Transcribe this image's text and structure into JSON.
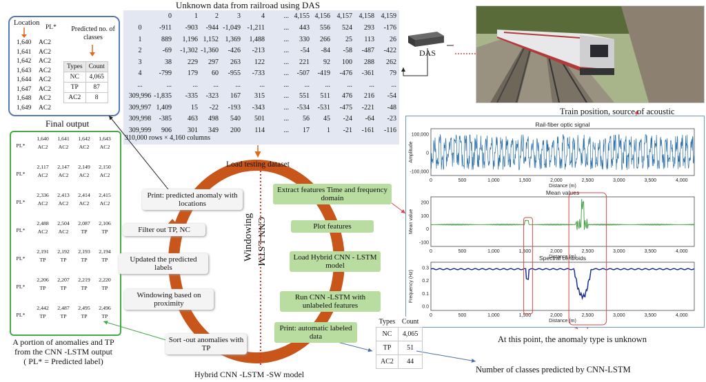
{
  "das_title": "Unknown data from railroad using DAS",
  "das_table": {
    "header": [
      "0",
      "1",
      "2",
      "3",
      "4",
      "...",
      "4,155",
      "4,156",
      "4,157",
      "4,158",
      "4,159"
    ],
    "rows": [
      [
        "0",
        "-911",
        "-903",
        "-944",
        "-1,049",
        "-1,211",
        "...",
        "443",
        "556",
        "524",
        "293",
        "-176"
      ],
      [
        "1",
        "889",
        "1,196",
        "1,152",
        "1,369",
        "1,488",
        "...",
        "330",
        "266",
        "25",
        "113",
        "26"
      ],
      [
        "2",
        "-69",
        "-1,302",
        "-1,360",
        "-426",
        "-213",
        "...",
        "-54",
        "-84",
        "-58",
        "-487",
        "-422"
      ],
      [
        "3",
        "38",
        "229",
        "297",
        "263",
        "122",
        "...",
        "221",
        "92",
        "100",
        "288",
        "262"
      ],
      [
        "4",
        "-799",
        "179",
        "60",
        "-955",
        "-733",
        "...",
        "-507",
        "-419",
        "-476",
        "-361",
        "79"
      ],
      [
        "...",
        "...",
        "...",
        "...",
        "...",
        "...",
        "...",
        "...",
        "...",
        "...",
        "...",
        "..."
      ],
      [
        "309,996",
        "-1,835",
        "-335",
        "-323",
        "167",
        "315",
        "...",
        "551",
        "511",
        "476",
        "216",
        "-54"
      ],
      [
        "309,997",
        "1,409",
        "15",
        "-22",
        "-193",
        "-343",
        "...",
        "-534",
        "-531",
        "-475",
        "-221",
        "-48"
      ],
      [
        "309,998",
        "-385",
        "463",
        "498",
        "540",
        "501",
        "...",
        "56",
        "45",
        "-24",
        "-64",
        "-23"
      ],
      [
        "309,999",
        "906",
        "301",
        "349",
        "200",
        "114",
        "...",
        "17",
        "1",
        "-21",
        "-161",
        "-116"
      ]
    ],
    "footer": "310,000 rows × 4,160 columns"
  },
  "location_panel": {
    "loc_header": "Location",
    "pl_header": "PL*",
    "rows": [
      [
        "1,640",
        "AC2"
      ],
      [
        "1,641",
        "AC2"
      ],
      [
        "1,642",
        "AC2"
      ],
      [
        "1,643",
        "AC2"
      ],
      [
        "1,644",
        "AC2"
      ],
      [
        "1,647",
        "AC2"
      ],
      [
        "1,648",
        "AC2"
      ],
      [
        "1,649",
        "AC2"
      ]
    ],
    "predicted_label": "Predicted no. of classes",
    "count_table": {
      "headers": [
        "Types",
        "Count"
      ],
      "rows": [
        [
          "NC",
          "4,065"
        ],
        [
          "TP",
          "87"
        ],
        [
          "AC2",
          "8"
        ]
      ]
    }
  },
  "final_output": {
    "title": "Final output",
    "pl_label": "PL*",
    "groups": [
      {
        "locs": [
          "1,640",
          "1,641",
          "1,642",
          "1,643"
        ],
        "labels": [
          "AC2",
          "AC2",
          "AC2",
          "AC2"
        ]
      },
      {
        "locs": [
          "2,117",
          "2,147",
          "2,149",
          "2,150"
        ],
        "labels": [
          "AC2",
          "AC2",
          "AC2",
          "AC2"
        ]
      },
      {
        "locs": [
          "2,336",
          "2,413",
          "2,414",
          "2,415"
        ],
        "labels": [
          "AC2",
          "AC2",
          "AC2",
          "AC2"
        ]
      },
      {
        "locs": [
          "2,488",
          "2,504",
          "2,087",
          "2,106"
        ],
        "labels": [
          "AC2",
          "AC2",
          "TP",
          "TP"
        ]
      },
      {
        "locs": [
          "2,191",
          "2,192",
          "2,193",
          "2,194"
        ],
        "labels": [
          "TP",
          "TP",
          "TP",
          "TP"
        ]
      },
      {
        "locs": [
          "2,206",
          "2,207",
          "2,219",
          "2,220"
        ],
        "labels": [
          "TP",
          "TP",
          "TP",
          "TP"
        ]
      },
      {
        "locs": [
          "2,442",
          "2,487",
          "2,495",
          "2,496"
        ],
        "labels": [
          "TP",
          "TP",
          "TP",
          "TP"
        ]
      }
    ],
    "caption_line1": "A portion of anomalies and TP",
    "caption_line2": "from the CNN -LSTM output",
    "caption_line3": "( PL* = Predicted label)"
  },
  "flow": {
    "load": "Load testing dataset",
    "left_steps": [
      "Print: predicted anomaly with locations",
      "Filter out TP, NC",
      "Updated the predicted labels",
      "Windowing based on proximity",
      "Sort -out anomalies with TP"
    ],
    "right_steps": [
      "Extract features Time and frequency domain",
      "Plot features",
      "Load Hybrid CNN - LSTM model",
      "Run CNN -LSTM with unlabeled features",
      "Print: automatic labeled data"
    ],
    "windowing_label": "Windowing",
    "cnn_label": "CNN-LSTM",
    "model_caption": "Hybrid CNN -LSTM -SW model"
  },
  "das_device_label": "DAS",
  "signal_panel": {
    "train_caption": "Train position, source of acoustic",
    "plot1_title": "Rail-fiber optic signal",
    "plot1_ylabel": "Amplitude",
    "plot1_yticks": [
      "100,000",
      "0",
      "-100,000"
    ],
    "plot2_title": "Mean values",
    "plot2_ylabel": "Mean value",
    "plot2_yticks": [
      "200",
      "100",
      "0",
      "-100"
    ],
    "plot3_title": "Spectral centroids",
    "plot3_ylabel": "Frequency (Hz)",
    "plot3_yticks": [
      "0.3",
      "0.2",
      "0.1",
      "0.0"
    ],
    "xticks": [
      "0",
      "500",
      "1,000",
      "1,500",
      "2,000",
      "2,500",
      "3,000",
      "3,500",
      "4,000"
    ],
    "xlabel": "Distance (m)",
    "anomaly_caption": "At this point, the anomaly type is unknown",
    "colors": {
      "signal": "#2a6ea8",
      "mean": "#3a9a3a",
      "centroid": "#1a2e8c",
      "highlight": "#d94545"
    }
  },
  "bottom_table": {
    "headers": [
      "Types",
      "Count"
    ],
    "rows": [
      [
        "NC",
        "4,065"
      ],
      [
        "TP",
        "51"
      ],
      [
        "AC2",
        "44"
      ]
    ],
    "caption": "Number of classes predicted by CNN-LSTM"
  }
}
